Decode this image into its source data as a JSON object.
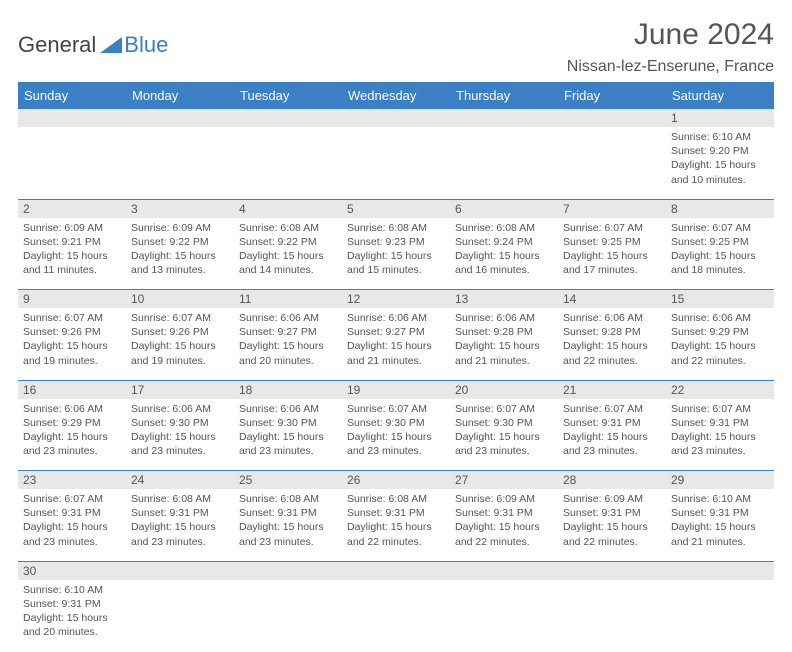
{
  "brand": {
    "part1": "General",
    "part2": "Blue"
  },
  "title": "June 2024",
  "location": "Nissan-lez-Enserune, France",
  "colors": {
    "header_bg": "#3b7fc4",
    "header_text": "#ffffff",
    "daynum_bg": "#e8e8e8",
    "text": "#555555",
    "rule": "#3b7fc4"
  },
  "weekdays": [
    "Sunday",
    "Monday",
    "Tuesday",
    "Wednesday",
    "Thursday",
    "Friday",
    "Saturday"
  ],
  "weeks": [
    {
      "nums": [
        "",
        "",
        "",
        "",
        "",
        "",
        "1"
      ],
      "cells": [
        "",
        "",
        "",
        "",
        "",
        "",
        "Sunrise: 6:10 AM\nSunset: 9:20 PM\nDaylight: 15 hours and 10 minutes."
      ]
    },
    {
      "nums": [
        "2",
        "3",
        "4",
        "5",
        "6",
        "7",
        "8"
      ],
      "cells": [
        "Sunrise: 6:09 AM\nSunset: 9:21 PM\nDaylight: 15 hours and 11 minutes.",
        "Sunrise: 6:09 AM\nSunset: 9:22 PM\nDaylight: 15 hours and 13 minutes.",
        "Sunrise: 6:08 AM\nSunset: 9:22 PM\nDaylight: 15 hours and 14 minutes.",
        "Sunrise: 6:08 AM\nSunset: 9:23 PM\nDaylight: 15 hours and 15 minutes.",
        "Sunrise: 6:08 AM\nSunset: 9:24 PM\nDaylight: 15 hours and 16 minutes.",
        "Sunrise: 6:07 AM\nSunset: 9:25 PM\nDaylight: 15 hours and 17 minutes.",
        "Sunrise: 6:07 AM\nSunset: 9:25 PM\nDaylight: 15 hours and 18 minutes."
      ]
    },
    {
      "nums": [
        "9",
        "10",
        "11",
        "12",
        "13",
        "14",
        "15"
      ],
      "cells": [
        "Sunrise: 6:07 AM\nSunset: 9:26 PM\nDaylight: 15 hours and 19 minutes.",
        "Sunrise: 6:07 AM\nSunset: 9:26 PM\nDaylight: 15 hours and 19 minutes.",
        "Sunrise: 6:06 AM\nSunset: 9:27 PM\nDaylight: 15 hours and 20 minutes.",
        "Sunrise: 6:06 AM\nSunset: 9:27 PM\nDaylight: 15 hours and 21 minutes.",
        "Sunrise: 6:06 AM\nSunset: 9:28 PM\nDaylight: 15 hours and 21 minutes.",
        "Sunrise: 6:06 AM\nSunset: 9:28 PM\nDaylight: 15 hours and 22 minutes.",
        "Sunrise: 6:06 AM\nSunset: 9:29 PM\nDaylight: 15 hours and 22 minutes."
      ]
    },
    {
      "nums": [
        "16",
        "17",
        "18",
        "19",
        "20",
        "21",
        "22"
      ],
      "cells": [
        "Sunrise: 6:06 AM\nSunset: 9:29 PM\nDaylight: 15 hours and 23 minutes.",
        "Sunrise: 6:06 AM\nSunset: 9:30 PM\nDaylight: 15 hours and 23 minutes.",
        "Sunrise: 6:06 AM\nSunset: 9:30 PM\nDaylight: 15 hours and 23 minutes.",
        "Sunrise: 6:07 AM\nSunset: 9:30 PM\nDaylight: 15 hours and 23 minutes.",
        "Sunrise: 6:07 AM\nSunset: 9:30 PM\nDaylight: 15 hours and 23 minutes.",
        "Sunrise: 6:07 AM\nSunset: 9:31 PM\nDaylight: 15 hours and 23 minutes.",
        "Sunrise: 6:07 AM\nSunset: 9:31 PM\nDaylight: 15 hours and 23 minutes."
      ]
    },
    {
      "nums": [
        "23",
        "24",
        "25",
        "26",
        "27",
        "28",
        "29"
      ],
      "cells": [
        "Sunrise: 6:07 AM\nSunset: 9:31 PM\nDaylight: 15 hours and 23 minutes.",
        "Sunrise: 6:08 AM\nSunset: 9:31 PM\nDaylight: 15 hours and 23 minutes.",
        "Sunrise: 6:08 AM\nSunset: 9:31 PM\nDaylight: 15 hours and 23 minutes.",
        "Sunrise: 6:08 AM\nSunset: 9:31 PM\nDaylight: 15 hours and 22 minutes.",
        "Sunrise: 6:09 AM\nSunset: 9:31 PM\nDaylight: 15 hours and 22 minutes.",
        "Sunrise: 6:09 AM\nSunset: 9:31 PM\nDaylight: 15 hours and 22 minutes.",
        "Sunrise: 6:10 AM\nSunset: 9:31 PM\nDaylight: 15 hours and 21 minutes."
      ]
    },
    {
      "nums": [
        "30",
        "",
        "",
        "",
        "",
        "",
        ""
      ],
      "cells": [
        "Sunrise: 6:10 AM\nSunset: 9:31 PM\nDaylight: 15 hours and 20 minutes.",
        "",
        "",
        "",
        "",
        "",
        ""
      ]
    }
  ]
}
